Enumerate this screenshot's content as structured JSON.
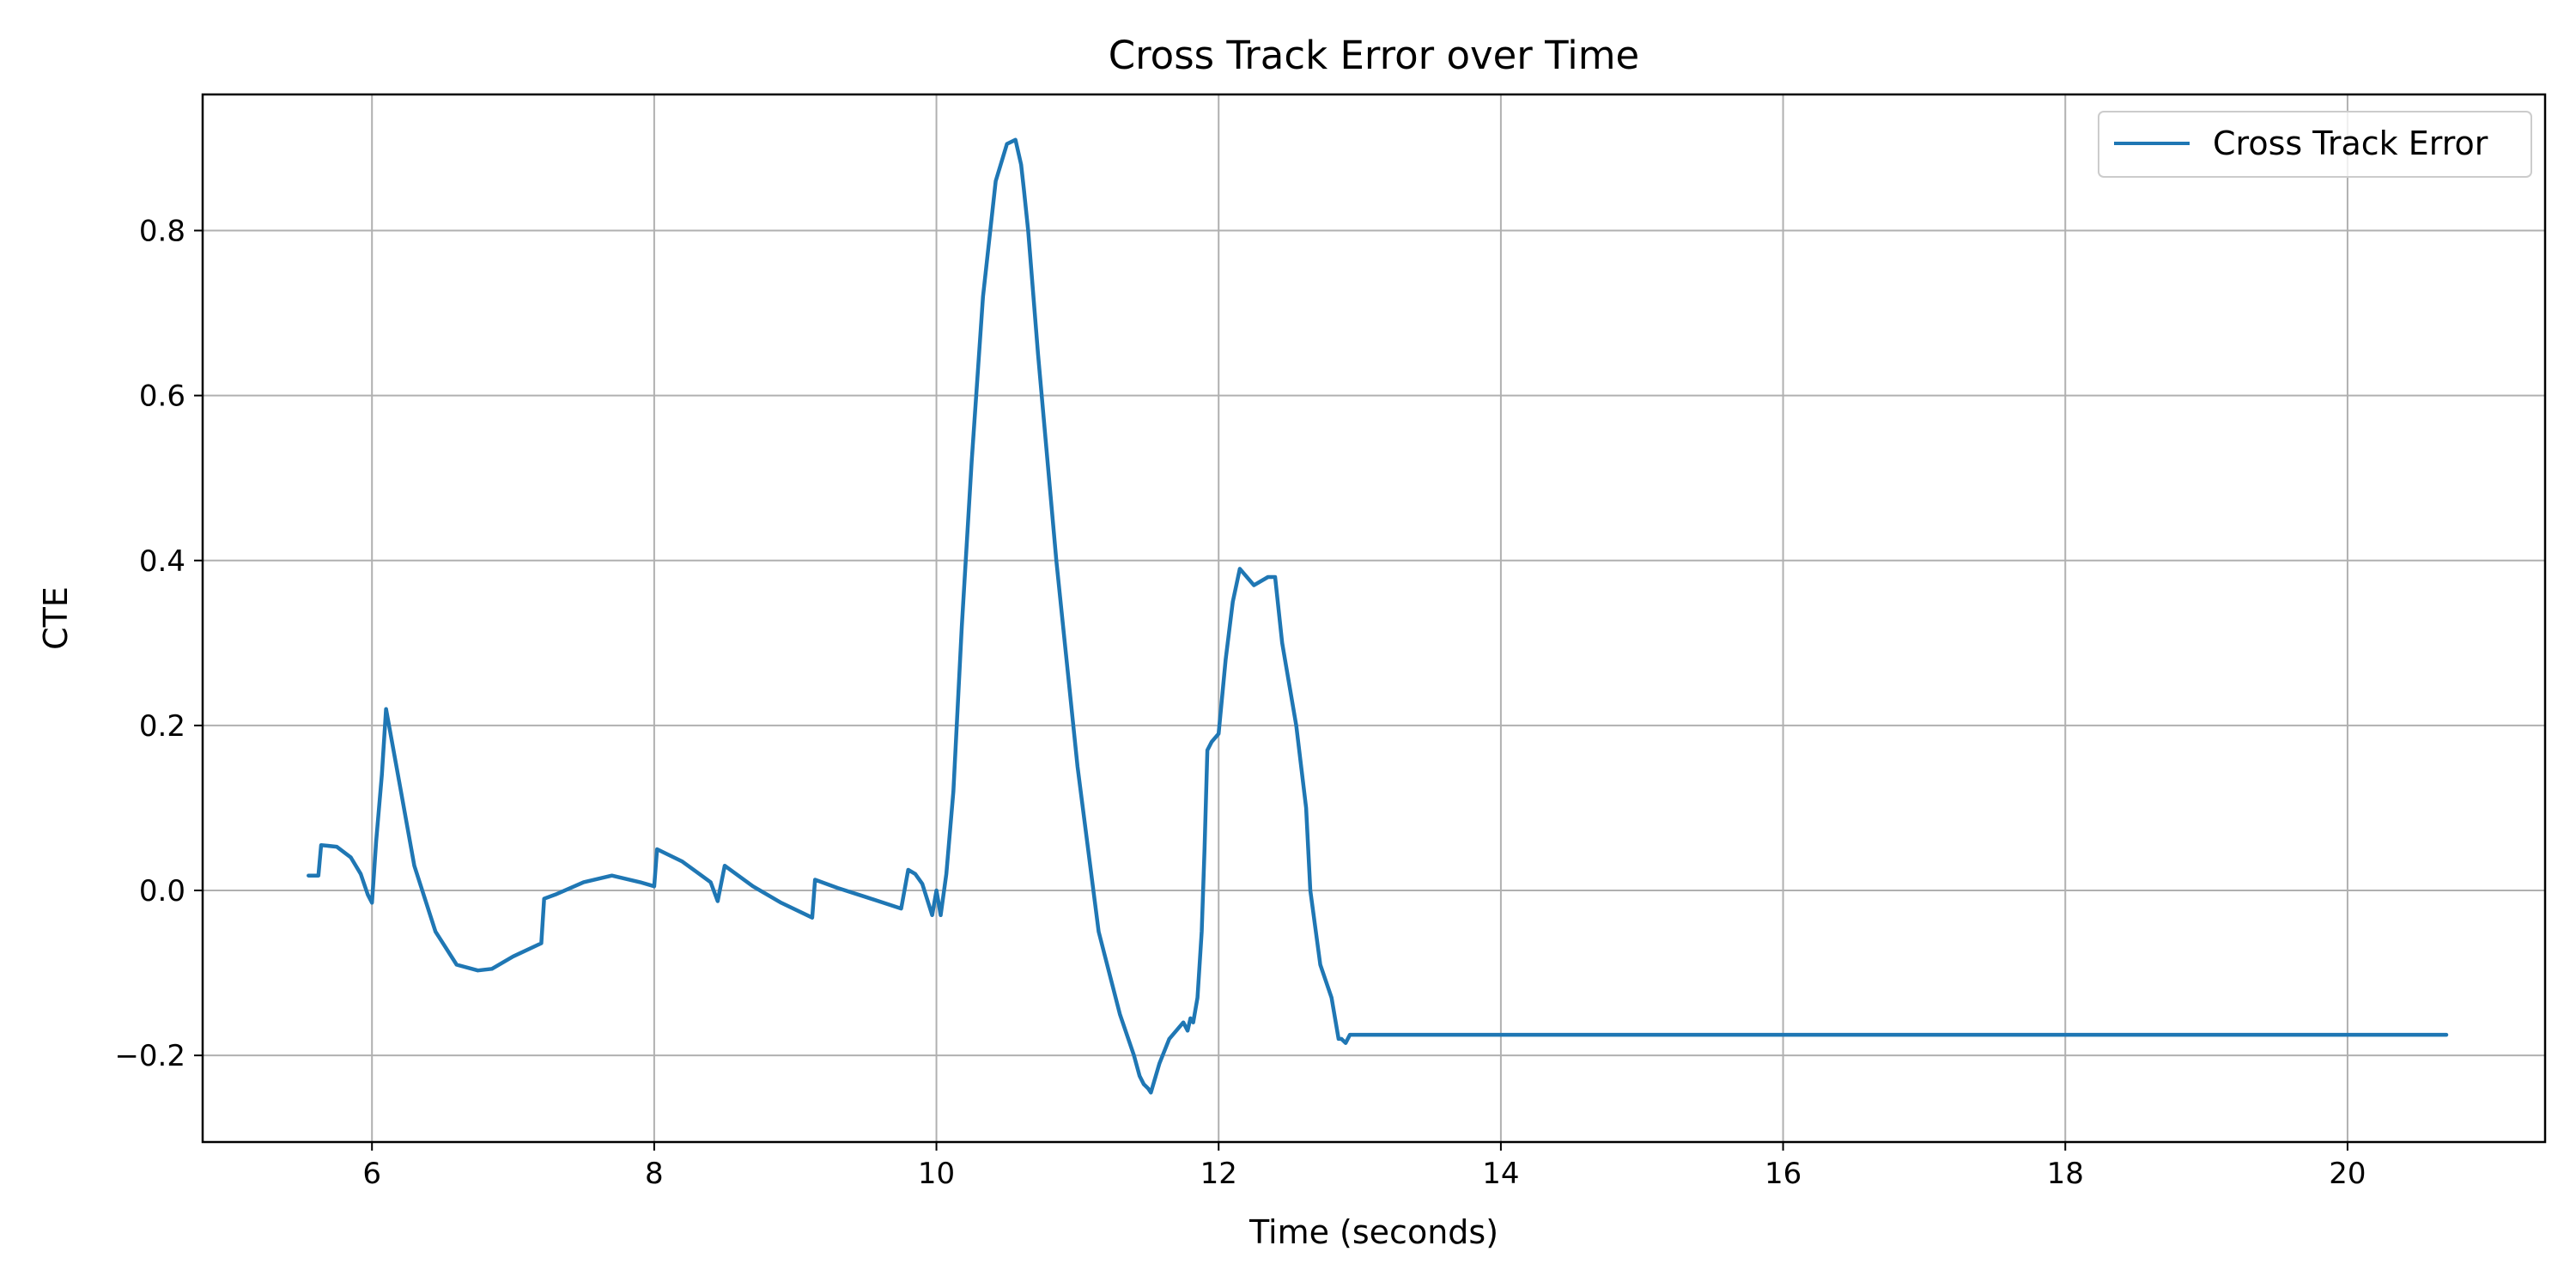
{
  "chart_data": {
    "type": "line",
    "title": "Cross Track Error over Time",
    "xlabel": "Time (seconds)",
    "ylabel": "CTE",
    "xlim": [
      4.8,
      21.4
    ],
    "ylim": [
      -0.305,
      0.965
    ],
    "xticks": [
      6,
      8,
      10,
      12,
      14,
      16,
      18,
      20
    ],
    "xtick_labels": [
      "6",
      "8",
      "10",
      "12",
      "14",
      "16",
      "18",
      "20"
    ],
    "yticks": [
      -0.2,
      0.0,
      0.2,
      0.4,
      0.6,
      0.8
    ],
    "ytick_labels": [
      "−0.2",
      "0.0",
      "0.2",
      "0.4",
      "0.6",
      "0.8"
    ],
    "grid": true,
    "legend_position": "top-right",
    "series": [
      {
        "name": "Cross Track Error",
        "color": "#1f77b4",
        "x": [
          5.55,
          5.62,
          5.64,
          5.75,
          5.85,
          5.92,
          5.97,
          6.0,
          6.03,
          6.07,
          6.1,
          6.2,
          6.3,
          6.45,
          6.6,
          6.75,
          6.85,
          7.0,
          7.2,
          7.22,
          7.3,
          7.5,
          7.7,
          7.9,
          8.0,
          8.02,
          8.2,
          8.4,
          8.45,
          8.5,
          8.7,
          8.9,
          9.12,
          9.14,
          9.3,
          9.5,
          9.75,
          9.8,
          9.85,
          9.9,
          9.97,
          10.0,
          10.03,
          10.07,
          10.12,
          10.18,
          10.25,
          10.33,
          10.42,
          10.5,
          10.56,
          10.6,
          10.62,
          10.65,
          10.72,
          10.85,
          11.0,
          11.15,
          11.3,
          11.4,
          11.44,
          11.47,
          11.5,
          11.52,
          11.58,
          11.65,
          11.75,
          11.78,
          11.8,
          11.82,
          11.85,
          11.88,
          11.9,
          11.92,
          11.95,
          12.0,
          12.05,
          12.1,
          12.15,
          12.25,
          12.35,
          12.4,
          12.45,
          12.55,
          12.62,
          12.65,
          12.72,
          12.8,
          12.85,
          12.87,
          12.9,
          12.93,
          12.95,
          12.97,
          13.0,
          13.05,
          13.08,
          13.1,
          13.12,
          13.15,
          13.2,
          13.23,
          13.27,
          20.7
        ],
        "values": [
          0.018,
          0.018,
          0.055,
          0.053,
          0.04,
          0.02,
          -0.005,
          -0.015,
          0.06,
          0.14,
          0.22,
          0.125,
          0.03,
          -0.05,
          -0.09,
          -0.097,
          -0.095,
          -0.08,
          -0.064,
          -0.01,
          -0.005,
          0.01,
          0.018,
          0.01,
          0.005,
          0.05,
          0.035,
          0.01,
          -0.013,
          0.03,
          0.005,
          -0.015,
          -0.033,
          0.013,
          0.003,
          -0.008,
          -0.022,
          0.025,
          0.02,
          0.008,
          -0.03,
          0.0,
          -0.03,
          0.02,
          0.12,
          0.32,
          0.52,
          0.72,
          0.86,
          0.905,
          0.91,
          0.88,
          0.85,
          0.8,
          0.65,
          0.4,
          0.15,
          -0.05,
          -0.15,
          -0.2,
          -0.225,
          -0.235,
          -0.24,
          -0.245,
          -0.21,
          -0.18,
          -0.16,
          -0.17,
          -0.155,
          -0.16,
          -0.13,
          -0.05,
          0.05,
          0.17,
          0.18,
          0.19,
          0.28,
          0.35,
          0.39,
          0.37,
          0.38,
          0.38,
          0.3,
          0.2,
          0.1,
          0.0,
          -0.09,
          -0.13,
          -0.18,
          -0.18,
          -0.185,
          -0.175,
          -0.175,
          -0.175,
          -0.175,
          -0.175,
          -0.175,
          -0.175,
          -0.175,
          -0.175,
          -0.175,
          -0.175,
          -0.175,
          -0.175
        ]
      }
    ]
  }
}
